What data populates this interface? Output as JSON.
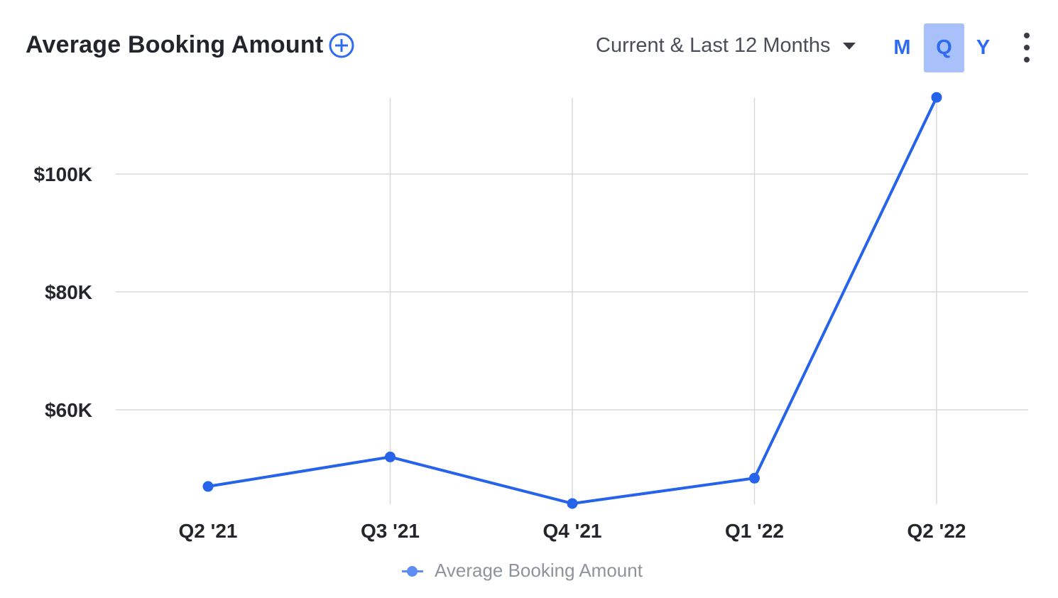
{
  "header": {
    "title": "Average Booking Amount",
    "period_label": "Current & Last 12 Months",
    "granularity": [
      {
        "label": "M",
        "active": false
      },
      {
        "label": "Q",
        "active": true
      },
      {
        "label": "Y",
        "active": false
      }
    ]
  },
  "icons": {
    "add": "plus-circle-icon",
    "dropdown": "caret-down-icon",
    "menu": "vertical-dots-icon"
  },
  "colors": {
    "series": "#2563eb",
    "accent": "#2f6bf2",
    "active_toggle_bg": "#a8c1fb",
    "grid": "#d9d9d9",
    "legend_text": "#8f939b"
  },
  "chart_data": {
    "type": "line",
    "title": "Average Booking Amount",
    "xlabel": "",
    "ylabel": "",
    "categories": [
      "Q2 '21",
      "Q3 '21",
      "Q4 '21",
      "Q1 '22",
      "Q2 '22"
    ],
    "series": [
      {
        "name": "Average Booking Amount",
        "values": [
          47000,
          52000,
          44100,
          48400,
          113000
        ]
      }
    ],
    "yticks": [
      {
        "value": 60000,
        "label": "$60K"
      },
      {
        "value": 80000,
        "label": "$80K"
      },
      {
        "value": 100000,
        "label": "$100K"
      }
    ],
    "ylim": [
      42000,
      113000
    ],
    "grid": {
      "horizontal": true,
      "vertical": true
    },
    "legend": "bottom-center"
  }
}
